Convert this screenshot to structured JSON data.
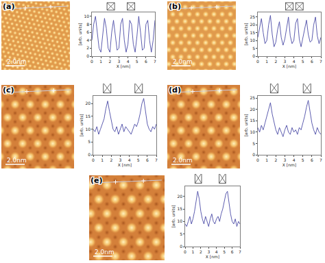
{
  "chart_data": [
    {
      "type": "line",
      "panel_label": "(a)",
      "scale_bar": "2.0nm",
      "x_label": "X [nm]",
      "y_label": "[arb. units]",
      "color": "#4b4ba6",
      "x": [
        0,
        0.2,
        0.4,
        0.6,
        0.8,
        1,
        1.2,
        1.4,
        1.6,
        1.8,
        2,
        2.2,
        2.4,
        2.6,
        2.8,
        3,
        3.2,
        3.4,
        3.6,
        3.8,
        4,
        4.2,
        4.4,
        4.6,
        4.8,
        5,
        5.2,
        5.4,
        5.6,
        5.8,
        6,
        6.2,
        6.4,
        6.6,
        6.8,
        7
      ],
      "values": [
        4,
        8,
        10,
        6,
        2,
        1,
        5,
        9.5,
        7,
        2,
        1,
        6,
        9,
        5,
        1.5,
        2,
        8,
        9.5,
        4,
        1,
        3,
        9,
        8,
        3,
        1,
        5,
        10,
        6,
        1.5,
        2,
        8,
        9,
        4,
        1,
        4,
        9
      ],
      "xlim": [
        0,
        7
      ],
      "ylim": [
        0,
        11
      ],
      "xticks": [
        0,
        1,
        2,
        3,
        4,
        5,
        6,
        7
      ],
      "yticks": [
        0,
        2,
        4,
        6,
        8,
        10
      ]
    },
    {
      "type": "line",
      "panel_label": "(b)",
      "scale_bar": "2.0nm",
      "x_label": "X [nm]",
      "y_label": "[arb. units]",
      "color": "#4b4ba6",
      "x": [
        0,
        0.2,
        0.4,
        0.6,
        0.8,
        1,
        1.2,
        1.4,
        1.6,
        1.8,
        2,
        2.2,
        2.4,
        2.6,
        2.8,
        3,
        3.2,
        3.4,
        3.6,
        3.8,
        4,
        4.2,
        4.4,
        4.6,
        4.8,
        5,
        5.2,
        5.4,
        5.6,
        5.8,
        6,
        6.2,
        6.4,
        6.6,
        6.8,
        7
      ],
      "values": [
        12,
        18,
        24,
        15,
        8,
        10,
        20,
        26,
        14,
        6,
        9,
        17,
        22,
        12,
        7,
        11,
        19,
        25,
        13,
        8,
        10,
        21,
        24,
        11,
        6,
        12,
        18,
        23,
        14,
        9,
        10,
        20,
        25,
        13,
        8,
        12
      ],
      "xlim": [
        0,
        7
      ],
      "ylim": [
        0,
        28
      ],
      "xticks": [
        0,
        1,
        2,
        3,
        4,
        5,
        6,
        7
      ],
      "yticks": [
        0,
        5,
        10,
        15,
        20,
        25
      ]
    },
    {
      "type": "line",
      "panel_label": "(c)",
      "scale_bar": "2.0nm",
      "x_label": "X [nm]",
      "y_label": "[arb. units]",
      "color": "#4b4ba6",
      "x": [
        0,
        0.2,
        0.4,
        0.6,
        0.8,
        1,
        1.2,
        1.4,
        1.6,
        1.8,
        2,
        2.2,
        2.4,
        2.6,
        2.8,
        3,
        3.2,
        3.4,
        3.6,
        3.8,
        4,
        4.2,
        4.4,
        4.6,
        4.8,
        5,
        5.2,
        5.4,
        5.6,
        5.8,
        6,
        6.2,
        6.4,
        6.6,
        6.8,
        7
      ],
      "values": [
        10,
        9,
        11,
        8,
        10,
        12,
        14,
        18,
        21,
        17,
        13,
        10,
        9,
        11,
        8,
        10,
        12,
        9,
        11,
        10,
        9,
        8,
        10,
        12,
        11,
        13,
        16,
        20,
        22,
        17,
        12,
        10,
        9,
        11,
        10,
        12
      ],
      "xlim": [
        0,
        7
      ],
      "ylim": [
        0,
        23
      ],
      "xticks": [
        0,
        1,
        2,
        3,
        4,
        5,
        6,
        7
      ],
      "yticks": [
        0,
        5,
        10,
        15,
        20
      ]
    },
    {
      "type": "line",
      "panel_label": "(d)",
      "scale_bar": "2.0nm",
      "x_label": "X [nm]",
      "y_label": "[arb. units]",
      "color": "#4b4ba6",
      "x": [
        0,
        0.2,
        0.4,
        0.6,
        0.8,
        1,
        1.2,
        1.4,
        1.6,
        1.8,
        2,
        2.2,
        2.4,
        2.6,
        2.8,
        3,
        3.2,
        3.4,
        3.6,
        3.8,
        4,
        4.2,
        4.4,
        4.6,
        4.8,
        5,
        5.2,
        5.4,
        5.6,
        5.8,
        6,
        6.2,
        6.4,
        6.6,
        6.8,
        7
      ],
      "values": [
        12,
        10,
        13,
        11,
        14,
        17,
        20,
        23,
        18,
        14,
        11,
        9,
        12,
        10,
        8,
        11,
        13,
        10,
        9,
        12,
        10,
        11,
        9,
        12,
        11,
        14,
        17,
        21,
        24,
        19,
        14,
        11,
        9,
        12,
        10,
        9
      ],
      "xlim": [
        0,
        7
      ],
      "ylim": [
        0,
        26
      ],
      "xticks": [
        0,
        1,
        2,
        3,
        4,
        5,
        6,
        7
      ],
      "yticks": [
        0,
        5,
        10,
        15,
        20,
        25
      ]
    },
    {
      "type": "line",
      "panel_label": "(e)",
      "scale_bar": "2.0nm",
      "x_label": "X [nm]",
      "y_label": "[arb. units]",
      "color": "#4b4ba6",
      "x": [
        0,
        0.2,
        0.4,
        0.6,
        0.8,
        1,
        1.2,
        1.4,
        1.6,
        1.8,
        2,
        2.2,
        2.4,
        2.6,
        2.8,
        3,
        3.2,
        3.4,
        3.6,
        3.8,
        4,
        4.2,
        4.4,
        4.6,
        4.8,
        5,
        5.2,
        5.4,
        5.6,
        5.8,
        6,
        6.2,
        6.4,
        6.6,
        6.8,
        7
      ],
      "values": [
        9,
        8,
        10,
        12,
        9,
        11,
        14,
        18,
        22,
        19,
        14,
        11,
        9,
        12,
        10,
        8,
        11,
        13,
        10,
        9,
        11,
        12,
        10,
        13,
        15,
        18,
        21,
        22,
        17,
        13,
        10,
        9,
        11,
        8,
        10,
        9
      ],
      "xlim": [
        0,
        7
      ],
      "ylim": [
        0,
        24
      ],
      "xticks": [
        0,
        1,
        2,
        3,
        4,
        5,
        6,
        7
      ],
      "yticks": [
        0,
        5,
        10,
        15,
        20
      ]
    }
  ]
}
